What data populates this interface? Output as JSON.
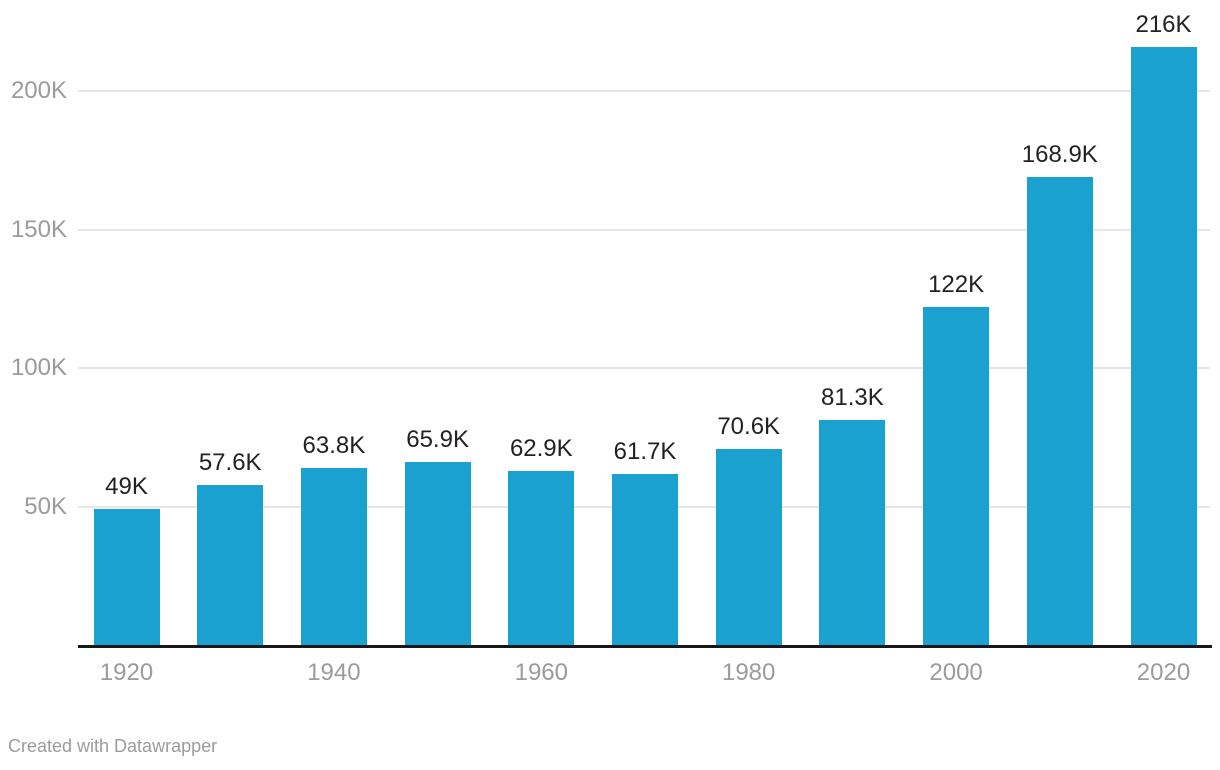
{
  "chart_data": {
    "type": "bar",
    "title": "",
    "unit": "K",
    "categories": [
      "1920",
      "1930",
      "1940",
      "1950",
      "1960",
      "1970",
      "1980",
      "1990",
      "2000",
      "2010",
      "2020"
    ],
    "values": [
      49,
      57.6,
      63.8,
      65.9,
      62.9,
      61.7,
      70.6,
      81.3,
      122,
      168.9,
      216
    ],
    "value_labels": [
      "49K",
      "57.6K",
      "63.8K",
      "65.9K",
      "62.9K",
      "61.7K",
      "70.6K",
      "81.3K",
      "122K",
      "168.9K",
      "216K"
    ],
    "x_ticks": [
      {
        "index": 0,
        "label": "1920"
      },
      {
        "index": 2,
        "label": "1940"
      },
      {
        "index": 4,
        "label": "1960"
      },
      {
        "index": 6,
        "label": "1980"
      },
      {
        "index": 8,
        "label": "2000"
      },
      {
        "index": 10,
        "label": "2020"
      }
    ],
    "y_ticks": [
      {
        "value": 50,
        "label": "50K"
      },
      {
        "value": 100,
        "label": "100K"
      },
      {
        "value": 150,
        "label": "150K"
      },
      {
        "value": 200,
        "label": "200K"
      }
    ],
    "ylim": [
      0,
      225
    ],
    "grid": true,
    "legend": "none",
    "colors": {
      "bar": "#1aa1cf",
      "value_label": "#222222",
      "tick_label": "#9b9b9b",
      "gridline": "#e6e6e6",
      "axis_line": "#181818",
      "background": "#ffffff"
    }
  },
  "footer": {
    "credit": "Created with Datawrapper"
  }
}
